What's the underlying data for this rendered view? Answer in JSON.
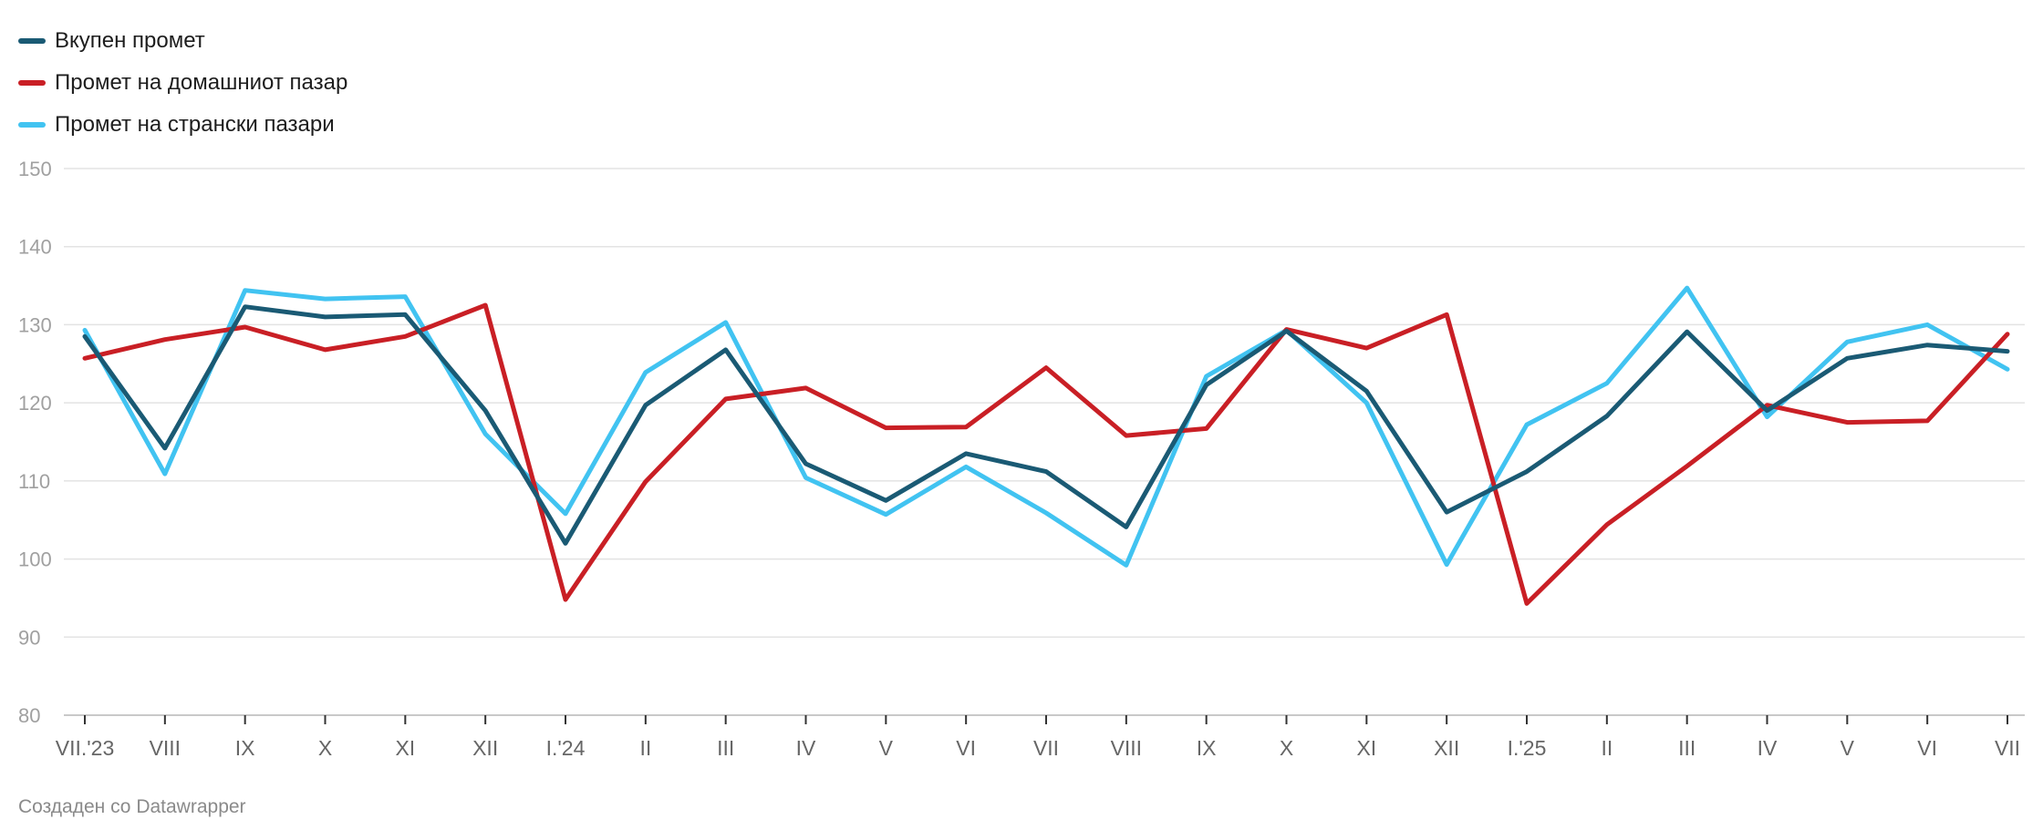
{
  "chart_data": {
    "type": "line",
    "categories": [
      "VII.'23",
      "VIII",
      "IX",
      "X",
      "XI",
      "XII",
      "I.'24",
      "II",
      "III",
      "IV",
      "V",
      "VI",
      "VII",
      "VIII",
      "IX",
      "X",
      "XI",
      "XII",
      "I.'25",
      "II",
      "III",
      "IV",
      "V",
      "VI",
      "VII"
    ],
    "series": [
      {
        "name": "Вкупен промет",
        "color": "#1a5a74",
        "values": [
          128.5,
          114.2,
          132.3,
          131.0,
          131.3,
          119.0,
          102.0,
          119.7,
          126.8,
          112.2,
          107.5,
          113.5,
          111.2,
          104.1,
          122.3,
          129.2,
          121.5,
          106.0,
          111.2,
          118.3,
          129.1,
          119.0,
          125.7,
          127.4,
          126.6
        ]
      },
      {
        "name": "Промет на домашниот пазар",
        "color": "#c91f25",
        "values": [
          125.7,
          128.1,
          129.7,
          126.8,
          128.5,
          132.5,
          94.8,
          109.9,
          120.5,
          121.9,
          116.8,
          116.9,
          124.5,
          115.8,
          116.7,
          129.4,
          127.0,
          131.3,
          94.3,
          104.4,
          111.9,
          119.7,
          117.5,
          117.7,
          128.8
        ]
      },
      {
        "name": "Промет на странски пазари",
        "color": "#41c3f1",
        "values": [
          129.3,
          110.9,
          134.4,
          133.3,
          133.6,
          116.0,
          105.8,
          123.9,
          130.3,
          110.4,
          105.7,
          111.8,
          105.9,
          99.2,
          123.4,
          129.3,
          120.0,
          99.3,
          117.2,
          122.5,
          134.7,
          118.2,
          127.8,
          130.0,
          124.3
        ]
      }
    ],
    "yticks": [
      80,
      90,
      100,
      110,
      120,
      130,
      140,
      150
    ],
    "ylim": [
      80,
      150
    ],
    "grid": true,
    "legend_position": "top-left"
  },
  "footer": {
    "credit": "Создаден со Datawrapper"
  }
}
